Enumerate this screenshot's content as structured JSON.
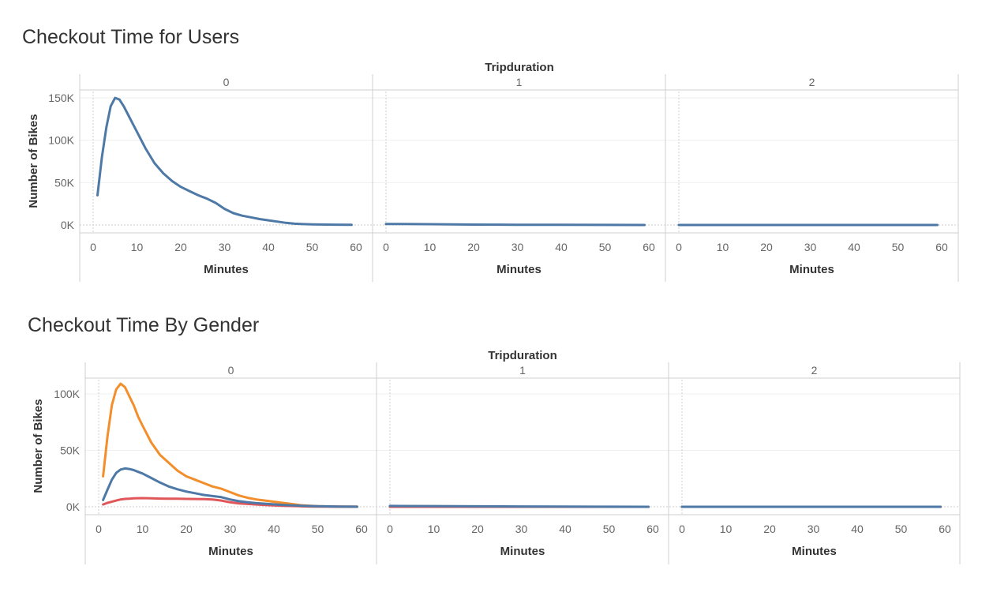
{
  "dashboard": {
    "charts": [
      {
        "title": "Checkout Time for Users",
        "column_header": "Tripduration",
        "panel_labels": [
          "0",
          "1",
          "2"
        ],
        "xlabel": "Minutes",
        "ylabel": "Number of Bikes",
        "x_ticks": [
          "0",
          "10",
          "20",
          "30",
          "40",
          "50",
          "60"
        ],
        "y_ticks": [
          "0K",
          "50K",
          "100K",
          "150K"
        ]
      },
      {
        "title": "Checkout Time By Gender",
        "column_header": "Tripduration",
        "panel_labels": [
          "0",
          "1",
          "2"
        ],
        "xlabel": "Minutes",
        "ylabel": "Number of Bikes",
        "x_ticks": [
          "0",
          "10",
          "20",
          "30",
          "40",
          "50",
          "60"
        ],
        "y_ticks": [
          "0K",
          "50K",
          "100K"
        ]
      }
    ]
  },
  "chart_data": [
    {
      "type": "line",
      "title": "Checkout Time for Users",
      "facet": "Tripduration",
      "panels": [
        "0",
        "1",
        "2"
      ],
      "xlabel": "Minutes",
      "ylabel": "Number of Bikes",
      "xlim": [
        0,
        60
      ],
      "ylim": [
        0,
        155000
      ],
      "y_ticks": [
        0,
        50000,
        100000,
        150000
      ],
      "series": [
        {
          "color": "#4e79a7",
          "panels": [
            {
              "x": [
                1,
                2,
                3,
                4,
                5,
                6,
                7,
                8,
                9,
                10,
                12,
                14,
                16,
                18,
                20,
                22,
                24,
                26,
                28,
                30,
                32,
                34,
                36,
                38,
                40,
                42,
                44,
                46,
                48,
                50,
                55,
                59
              ],
              "y": [
                35000,
                80000,
                115000,
                140000,
                150000,
                148000,
                140000,
                130000,
                120000,
                110000,
                90000,
                73000,
                61000,
                52000,
                45000,
                40000,
                35000,
                31000,
                26000,
                19000,
                14000,
                11000,
                9000,
                7000,
                5500,
                4000,
                2500,
                1500,
                1000,
                700,
                400,
                200
              ]
            },
            {
              "x": [
                0,
                10,
                20,
                30,
                40,
                50,
                59
              ],
              "y": [
                1200,
                900,
                500,
                300,
                150,
                50,
                0
              ]
            },
            {
              "x": [
                0,
                10,
                20,
                30,
                40,
                50,
                59
              ],
              "y": [
                0,
                0,
                0,
                0,
                0,
                0,
                0
              ]
            }
          ]
        }
      ]
    },
    {
      "type": "line",
      "title": "Checkout Time By Gender",
      "facet": "Tripduration",
      "panels": [
        "0",
        "1",
        "2"
      ],
      "xlabel": "Minutes",
      "ylabel": "Number of Bikes",
      "xlim": [
        0,
        60
      ],
      "ylim": [
        0,
        110000
      ],
      "y_ticks": [
        0,
        50000,
        100000
      ],
      "series": [
        {
          "color": "#f28e2b",
          "panels": [
            {
              "x": [
                1,
                2,
                3,
                4,
                5,
                6,
                7,
                8,
                9,
                10,
                12,
                14,
                16,
                18,
                20,
                22,
                24,
                26,
                28,
                30,
                32,
                34,
                36,
                38,
                40,
                42,
                44,
                46,
                48,
                50,
                55,
                59
              ],
              "y": [
                27000,
                62000,
                90000,
                104000,
                109000,
                106000,
                98000,
                90000,
                80000,
                72000,
                57000,
                46000,
                39000,
                32000,
                27000,
                24000,
                21000,
                18000,
                16000,
                13000,
                10000,
                8000,
                6500,
                5500,
                4500,
                3500,
                2500,
                1500,
                1000,
                500,
                200,
                100
              ]
            },
            {
              "x": [
                0,
                10,
                20,
                30,
                40,
                50,
                59
              ],
              "y": [
                0,
                0,
                0,
                0,
                0,
                0,
                0
              ]
            },
            {
              "x": [
                0,
                10,
                20,
                30,
                40,
                50,
                59
              ],
              "y": [
                0,
                0,
                0,
                0,
                0,
                0,
                0
              ]
            }
          ]
        },
        {
          "color": "#e15759",
          "panels": [
            {
              "x": [
                1,
                2,
                3,
                4,
                5,
                6,
                7,
                8,
                9,
                10,
                12,
                14,
                16,
                18,
                20,
                22,
                24,
                26,
                28,
                30,
                32,
                34,
                36,
                38,
                40,
                42,
                44,
                46,
                48,
                50,
                55,
                59
              ],
              "y": [
                2000,
                3500,
                4500,
                5500,
                6500,
                7000,
                7200,
                7500,
                7600,
                7700,
                7500,
                7300,
                7200,
                7100,
                7000,
                6900,
                6800,
                6500,
                5500,
                4000,
                3000,
                2500,
                2000,
                1600,
                1200,
                900,
                700,
                500,
                300,
                200,
                100,
                50
              ]
            },
            {
              "x": [
                0,
                10,
                20,
                30,
                40,
                50,
                59
              ],
              "y": [
                0,
                0,
                0,
                0,
                0,
                0,
                0
              ]
            },
            {
              "x": [
                0,
                10,
                20,
                30,
                40,
                50,
                59
              ],
              "y": [
                0,
                0,
                0,
                0,
                0,
                0,
                0
              ]
            }
          ]
        },
        {
          "color": "#4e79a7",
          "panels": [
            {
              "x": [
                1,
                2,
                3,
                4,
                5,
                6,
                7,
                8,
                9,
                10,
                12,
                14,
                16,
                18,
                20,
                22,
                24,
                26,
                28,
                30,
                32,
                34,
                36,
                38,
                40,
                42,
                44,
                46,
                48,
                50,
                55,
                59
              ],
              "y": [
                6000,
                15000,
                24000,
                30000,
                33000,
                34000,
                33500,
                32500,
                31000,
                29500,
                25500,
                21500,
                18000,
                15500,
                13500,
                12000,
                10500,
                9500,
                8500,
                6500,
                5000,
                4000,
                3200,
                2700,
                2200,
                1700,
                1300,
                1000,
                700,
                500,
                200,
                100
              ]
            },
            {
              "x": [
                0,
                10,
                20,
                30,
                40,
                50,
                59
              ],
              "y": [
                800,
                600,
                400,
                300,
                150,
                80,
                30
              ]
            },
            {
              "x": [
                0,
                10,
                20,
                30,
                40,
                50,
                59
              ],
              "y": [
                0,
                0,
                0,
                0,
                0,
                0,
                0
              ]
            }
          ]
        }
      ]
    }
  ]
}
